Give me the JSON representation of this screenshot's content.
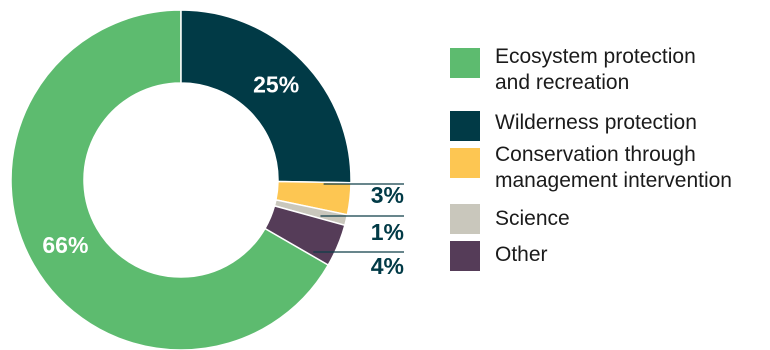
{
  "chart_data": {
    "type": "pie",
    "categories": [
      "Ecosystem protection\nand recreation",
      "Wilderness protection",
      "Conservation through\nmanagement intervention",
      "Science",
      "Other"
    ],
    "values": [
      66,
      25,
      3,
      1,
      4
    ],
    "value_labels": [
      "66%",
      "25%",
      "3%",
      "1%",
      "4%"
    ],
    "colors": [
      "#5dbb6f",
      "#013a46",
      "#fdc652",
      "#c9c7bc",
      "#553c58"
    ],
    "title": "",
    "legend_placement": "right"
  },
  "legend": {
    "items": [
      {
        "label": "Ecosystem protection\nand recreation",
        "color": "#5dbb6f"
      },
      {
        "label": "Wilderness protection",
        "color": "#013a46"
      },
      {
        "label": "Conservation through\nmanagement intervention",
        "color": "#fdc652"
      },
      {
        "label": "Science",
        "color": "#c9c7bc"
      },
      {
        "label": "Other",
        "color": "#553c58"
      }
    ]
  }
}
